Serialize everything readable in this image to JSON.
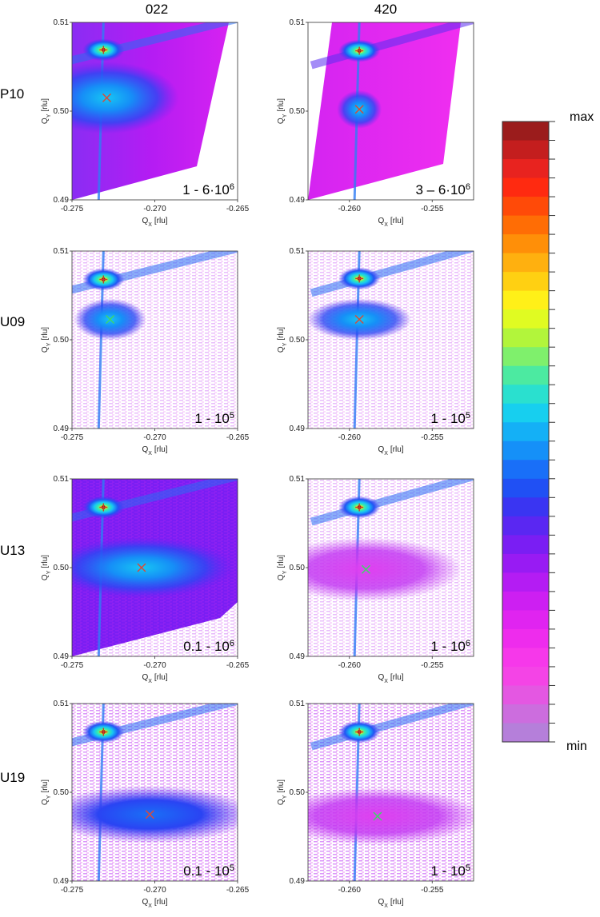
{
  "columns": [
    "022",
    "420"
  ],
  "rows": [
    "P10",
    "U09",
    "U13",
    "U19"
  ],
  "colorbar": {
    "max_label": "max",
    "min_label": "min",
    "colors": [
      "#9b1c1c",
      "#c41e1e",
      "#e8231f",
      "#ff2a10",
      "#ff4a08",
      "#ff6d05",
      "#ff8f08",
      "#ffb00f",
      "#ffd012",
      "#fff018",
      "#e0fb22",
      "#b2f53b",
      "#7ff06c",
      "#4ceaa1",
      "#2ae0cf",
      "#17cfef",
      "#14b0f6",
      "#1590f8",
      "#196ff8",
      "#2050f4",
      "#3a35f2",
      "#5a27f2",
      "#7a1ef3",
      "#981bf3",
      "#b41cf3",
      "#cd1ff2",
      "#e024f0",
      "#ee2ced",
      "#f638ea",
      "#f444e6",
      "#e457e2",
      "#cc6dde",
      "#b57fda"
    ]
  },
  "chart_data": [
    {
      "type": "heatmap",
      "id": "P10-022",
      "row": "P10",
      "column": "022",
      "xlabel": "Q_X [rlu]",
      "ylabel": "Q_Y [rlu]",
      "xlim": [
        -0.275,
        -0.265
      ],
      "ylim": [
        0.49,
        0.51
      ],
      "xticks": [
        "-0.275",
        "-0.270",
        "-0.265"
      ],
      "yticks": [
        "0.49",
        "0.50",
        "0.51"
      ],
      "intensity_range": {
        "pre": "1 - 6·10",
        "exp": "6"
      },
      "peaks": [
        {
          "x": -0.2731,
          "y": 0.5069,
          "color": "#c83c28",
          "shape": "plus"
        },
        {
          "x": -0.2729,
          "y": 0.5015,
          "color": "#d84a3a",
          "shape": "cross"
        }
      ]
    },
    {
      "type": "heatmap",
      "id": "P10-420",
      "row": "P10",
      "column": "420",
      "xlabel": "Q_X [rlu]",
      "ylabel": "Q_Y [rlu]",
      "xlim": [
        -0.2625,
        -0.2525
      ],
      "ylim": [
        0.49,
        0.51
      ],
      "xticks": [
        "-0.260",
        "-0.255"
      ],
      "yticks": [
        "0.49",
        "0.50",
        "0.51"
      ],
      "intensity_range": {
        "pre": "3 – 6·10",
        "exp": "6"
      },
      "peaks": [
        {
          "x": -0.2594,
          "y": 0.5068,
          "color": "#c83c28",
          "shape": "plus"
        },
        {
          "x": -0.2594,
          "y": 0.5002,
          "color": "#d84a3a",
          "shape": "cross"
        }
      ]
    },
    {
      "type": "heatmap",
      "id": "U09-022",
      "row": "U09",
      "column": "022",
      "xlabel": "Q_X [rlu]",
      "ylabel": "Q_Y [rlu]",
      "xlim": [
        -0.275,
        -0.265
      ],
      "ylim": [
        0.49,
        0.51
      ],
      "xticks": [
        "-0.275",
        "-0.270",
        "-0.265"
      ],
      "yticks": [
        "0.49",
        "0.50",
        "0.51"
      ],
      "intensity_range": {
        "pre": "1 - 10",
        "exp": "5"
      },
      "peaks": [
        {
          "x": -0.2731,
          "y": 0.5068,
          "color": "#c83c28",
          "shape": "plus"
        },
        {
          "x": -0.2727,
          "y": 0.5023,
          "color": "#3fd46a",
          "shape": "cross"
        }
      ]
    },
    {
      "type": "heatmap",
      "id": "U09-420",
      "row": "U09",
      "column": "420",
      "xlabel": "Q_X [rlu]",
      "ylabel": "Q_Y [rlu]",
      "xlim": [
        -0.2625,
        -0.2525
      ],
      "ylim": [
        0.49,
        0.51
      ],
      "xticks": [
        "-0.260",
        "-0.255"
      ],
      "yticks": [
        "0.49",
        "0.50",
        "0.51"
      ],
      "intensity_range": {
        "pre": "1 - 10",
        "exp": "5"
      },
      "peaks": [
        {
          "x": -0.2594,
          "y": 0.5069,
          "color": "#c83c28",
          "shape": "plus"
        },
        {
          "x": -0.2594,
          "y": 0.5023,
          "color": "#d84a3a",
          "shape": "cross"
        }
      ]
    },
    {
      "type": "heatmap",
      "id": "U13-022",
      "row": "U13",
      "column": "022",
      "xlabel": "Q_X [rlu]",
      "ylabel": "Q_Y [rlu]",
      "xlim": [
        -0.275,
        -0.265
      ],
      "ylim": [
        0.49,
        0.51
      ],
      "xticks": [
        "-0.275",
        "-0.270",
        "-0.265"
      ],
      "yticks": [
        "0.49",
        "0.50",
        "0.51"
      ],
      "intensity_range": {
        "pre": "0.1 - 10",
        "exp": "6"
      },
      "peaks": [
        {
          "x": -0.2731,
          "y": 0.5068,
          "color": "#c83c28",
          "shape": "plus"
        },
        {
          "x": -0.2708,
          "y": 0.5,
          "color": "#d84a3a",
          "shape": "cross"
        }
      ]
    },
    {
      "type": "heatmap",
      "id": "U13-420",
      "row": "U13",
      "column": "420",
      "xlabel": "Q_X [rlu]",
      "ylabel": "Q_Y [rlu]",
      "xlim": [
        -0.2625,
        -0.2525
      ],
      "ylim": [
        0.49,
        0.51
      ],
      "xticks": [
        "-0.260",
        "-0.255"
      ],
      "yticks": [
        "0.49",
        "0.50",
        "0.51"
      ],
      "intensity_range": {
        "pre": "1 - 10",
        "exp": "6"
      },
      "peaks": [
        {
          "x": -0.2594,
          "y": 0.5068,
          "color": "#c83c28",
          "shape": "plus"
        },
        {
          "x": -0.259,
          "y": 0.4998,
          "color": "#3fd46a",
          "shape": "cross"
        }
      ]
    },
    {
      "type": "heatmap",
      "id": "U19-022",
      "row": "U19",
      "column": "022",
      "xlabel": "Q_X [rlu]",
      "ylabel": "Q_Y [rlu]",
      "xlim": [
        -0.275,
        -0.265
      ],
      "ylim": [
        0.49,
        0.51
      ],
      "xticks": [
        "-0.275",
        "-0.270",
        "-0.265"
      ],
      "yticks": [
        "0.49",
        "0.50",
        "0.51"
      ],
      "intensity_range": {
        "pre": "0.1 - 10",
        "exp": "5"
      },
      "peaks": [
        {
          "x": -0.2731,
          "y": 0.5068,
          "color": "#c83c28",
          "shape": "plus"
        },
        {
          "x": -0.2703,
          "y": 0.4975,
          "color": "#d84a3a",
          "shape": "cross"
        }
      ]
    },
    {
      "type": "heatmap",
      "id": "U19-420",
      "row": "U19",
      "column": "420",
      "xlabel": "Q_X [rlu]",
      "ylabel": "Q_Y [rlu]",
      "xlim": [
        -0.2625,
        -0.2525
      ],
      "ylim": [
        0.49,
        0.51
      ],
      "xticks": [
        "-0.260",
        "-0.255"
      ],
      "yticks": [
        "0.49",
        "0.50",
        "0.51"
      ],
      "intensity_range": {
        "pre": "1 - 10",
        "exp": "5"
      },
      "peaks": [
        {
          "x": -0.2594,
          "y": 0.5068,
          "color": "#c83c28",
          "shape": "plus"
        },
        {
          "x": -0.2583,
          "y": 0.4973,
          "color": "#3fd46a",
          "shape": "cross"
        }
      ]
    }
  ]
}
